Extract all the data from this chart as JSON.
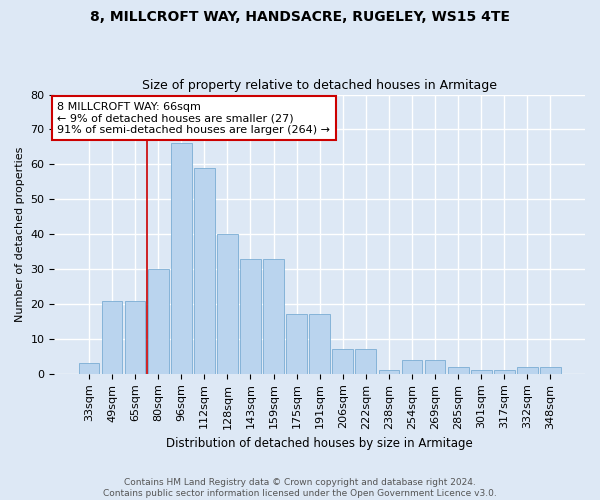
{
  "title": "8, MILLCROFT WAY, HANDSACRE, RUGELEY, WS15 4TE",
  "subtitle": "Size of property relative to detached houses in Armitage",
  "xlabel": "Distribution of detached houses by size in Armitage",
  "ylabel": "Number of detached properties",
  "categories": [
    "33sqm",
    "49sqm",
    "65sqm",
    "80sqm",
    "96sqm",
    "112sqm",
    "128sqm",
    "143sqm",
    "159sqm",
    "175sqm",
    "191sqm",
    "206sqm",
    "222sqm",
    "238sqm",
    "254sqm",
    "269sqm",
    "285sqm",
    "301sqm",
    "317sqm",
    "332sqm",
    "348sqm"
  ],
  "values": [
    3,
    21,
    21,
    30,
    66,
    59,
    40,
    33,
    33,
    17,
    17,
    7,
    7,
    1,
    4,
    4,
    2,
    1,
    1,
    2,
    2
  ],
  "bar_color": "#bad4ee",
  "bar_edge_color": "#7aadd4",
  "annotation_box_text": "8 MILLCROFT WAY: 66sqm\n← 9% of detached houses are smaller (27)\n91% of semi-detached houses are larger (264) →",
  "annotation_box_color": "#ffffff",
  "annotation_box_edge_color": "#cc0000",
  "vline_color": "#cc0000",
  "ylim": [
    0,
    80
  ],
  "yticks": [
    0,
    10,
    20,
    30,
    40,
    50,
    60,
    70,
    80
  ],
  "background_color": "#dde8f5",
  "grid_color": "#ffffff",
  "title_fontsize": 10,
  "subtitle_fontsize": 9,
  "ylabel_fontsize": 8,
  "xlabel_fontsize": 8.5,
  "tick_fontsize": 8,
  "footer": "Contains HM Land Registry data © Crown copyright and database right 2024.\nContains public sector information licensed under the Open Government Licence v3.0."
}
